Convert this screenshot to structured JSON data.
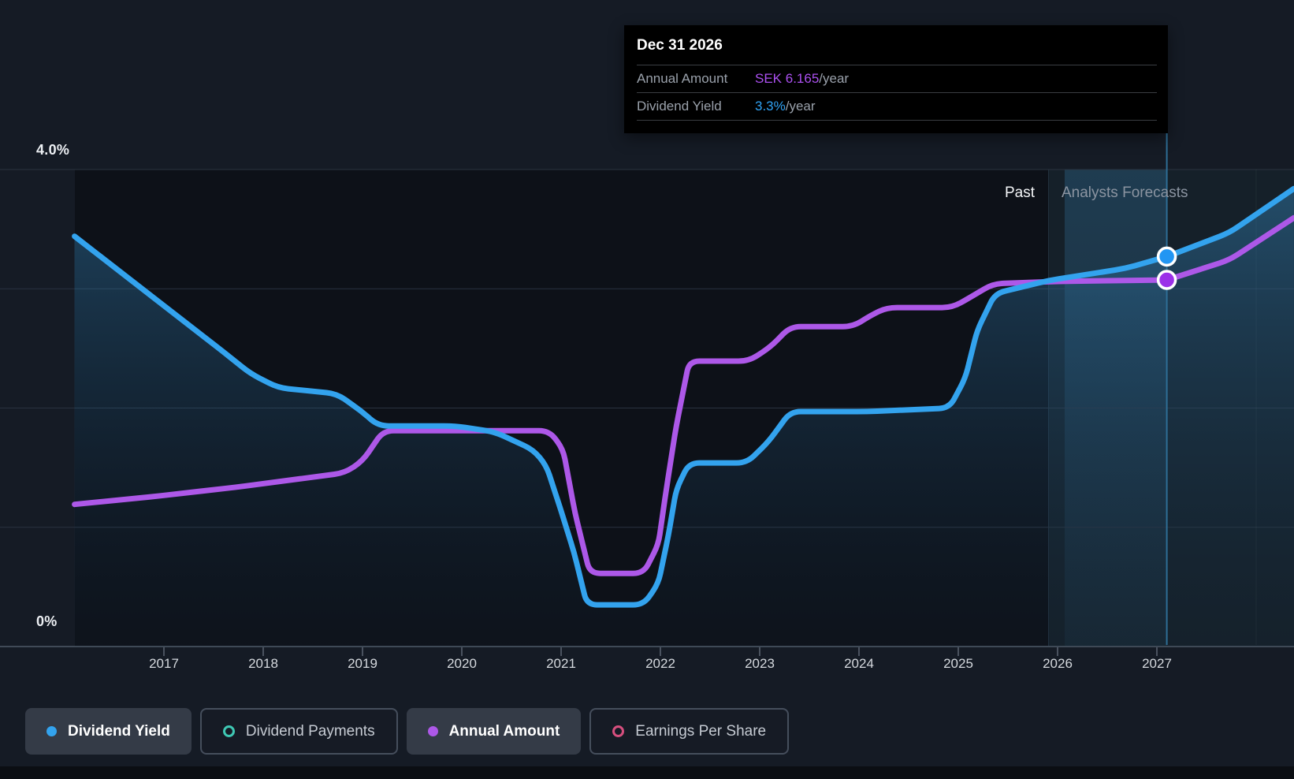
{
  "colors": {
    "page_bg": "#151b25",
    "plot_past_bg": "#0d1118",
    "plot_forecast_bg": "#152029",
    "gridline": "#2a3340",
    "axis_line": "#404a57",
    "tick": "#4a525f",
    "blue": "#33a3ee",
    "purple": "#ad58e8",
    "teal": "#3fc8b4",
    "pink": "#d64f7e",
    "tooltip_value_purple": "#ab50f0",
    "tooltip_value_blue": "#30a3f5",
    "hover_line": "#2e6e96",
    "marker_blue": "#2196f3",
    "marker_purple": "#9b30e8",
    "area_top": "rgba(52,130,182,0.45)",
    "area_bottom": "rgba(20,45,70,0.08)"
  },
  "tooltip": {
    "date": "Dec 31 2026",
    "rows": [
      {
        "label": "Annual Amount",
        "value": "SEK 6.165",
        "suffix": "/year",
        "color_key": "tooltip_value_purple"
      },
      {
        "label": "Dividend Yield",
        "value": "3.3%",
        "suffix": "/year",
        "color_key": "tooltip_value_blue"
      }
    ]
  },
  "labels": {
    "past": "Past",
    "forecast": "Analysts Forecasts",
    "y_top": "4.0%",
    "y_bottom": "0%"
  },
  "legend": {
    "items": [
      {
        "label": "Dividend Yield",
        "state": "active",
        "marker": "filled",
        "color_key": "blue"
      },
      {
        "label": "Dividend Payments",
        "state": "inactive",
        "marker": "ring",
        "color_key": "teal"
      },
      {
        "label": "Annual Amount",
        "state": "active",
        "marker": "filled",
        "color_key": "purple"
      },
      {
        "label": "Earnings Per Share",
        "state": "inactive",
        "marker": "ring",
        "color_key": "pink"
      }
    ]
  },
  "chart_data": {
    "type": "line",
    "x_ticks": [
      2017,
      2018,
      2019,
      2020,
      2021,
      2022,
      2023,
      2024,
      2025,
      2026,
      2027
    ],
    "x_range_years": [
      2016.1,
      2028.4
    ],
    "y_axis_percent": {
      "min": 0,
      "max": 4,
      "gridline_step": 1
    },
    "zones": {
      "past_end_year": 2025.9,
      "hover_year_start": 2026.0,
      "hover_year_end": 2027.0
    },
    "series": [
      {
        "name": "Dividend Yield",
        "unit": "%",
        "points": [
          [
            2016.1,
            3.44
          ],
          [
            2017.6,
            2.47
          ],
          [
            2017.87,
            2.29
          ],
          [
            2018.15,
            2.17
          ],
          [
            2018.74,
            2.12
          ],
          [
            2018.98,
            1.98
          ],
          [
            2019.16,
            1.85
          ],
          [
            2019.93,
            1.85
          ],
          [
            2020.33,
            1.8
          ],
          [
            2020.72,
            1.65
          ],
          [
            2020.85,
            1.52
          ],
          [
            2020.98,
            1.19
          ],
          [
            2021.13,
            0.79
          ],
          [
            2021.26,
            0.35
          ],
          [
            2021.83,
            0.35
          ],
          [
            2021.98,
            0.53
          ],
          [
            2022.08,
            0.93
          ],
          [
            2022.16,
            1.32
          ],
          [
            2022.29,
            1.54
          ],
          [
            2022.87,
            1.54
          ],
          [
            2023.09,
            1.72
          ],
          [
            2023.31,
            1.97
          ],
          [
            2024.08,
            1.97
          ],
          [
            2024.91,
            2.0
          ],
          [
            2025.07,
            2.25
          ],
          [
            2025.19,
            2.65
          ],
          [
            2025.37,
            2.96
          ],
          [
            2025.91,
            3.07
          ],
          [
            2026.68,
            3.17
          ],
          [
            2027.1,
            3.27
          ],
          [
            2027.73,
            3.47
          ],
          [
            2028.38,
            3.84
          ]
        ]
      },
      {
        "name": "Annual Amount",
        "unit": "SEK",
        "points": [
          [
            2016.1,
            2.39
          ],
          [
            2016.94,
            2.53
          ],
          [
            2017.73,
            2.68
          ],
          [
            2018.82,
            2.92
          ],
          [
            2019.0,
            3.12
          ],
          [
            2019.21,
            3.63
          ],
          [
            2020.88,
            3.63
          ],
          [
            2021.02,
            3.32
          ],
          [
            2021.14,
            2.25
          ],
          [
            2021.29,
            1.23
          ],
          [
            2021.83,
            1.23
          ],
          [
            2021.98,
            1.72
          ],
          [
            2022.06,
            2.65
          ],
          [
            2022.16,
            3.71
          ],
          [
            2022.29,
            4.8
          ],
          [
            2022.89,
            4.8
          ],
          [
            2023.11,
            5.04
          ],
          [
            2023.31,
            5.38
          ],
          [
            2023.94,
            5.38
          ],
          [
            2024.12,
            5.57
          ],
          [
            2024.28,
            5.7
          ],
          [
            2024.94,
            5.7
          ],
          [
            2025.15,
            5.9
          ],
          [
            2025.35,
            6.1
          ],
          [
            2026.0,
            6.14
          ],
          [
            2027.1,
            6.165
          ],
          [
            2027.73,
            6.5
          ],
          [
            2028.38,
            7.21
          ]
        ]
      }
    ],
    "marker": {
      "year": 2027.1,
      "yield_pct": 3.27,
      "amount_sek": 6.165,
      "date_label": "Dec 31 2026"
    }
  }
}
